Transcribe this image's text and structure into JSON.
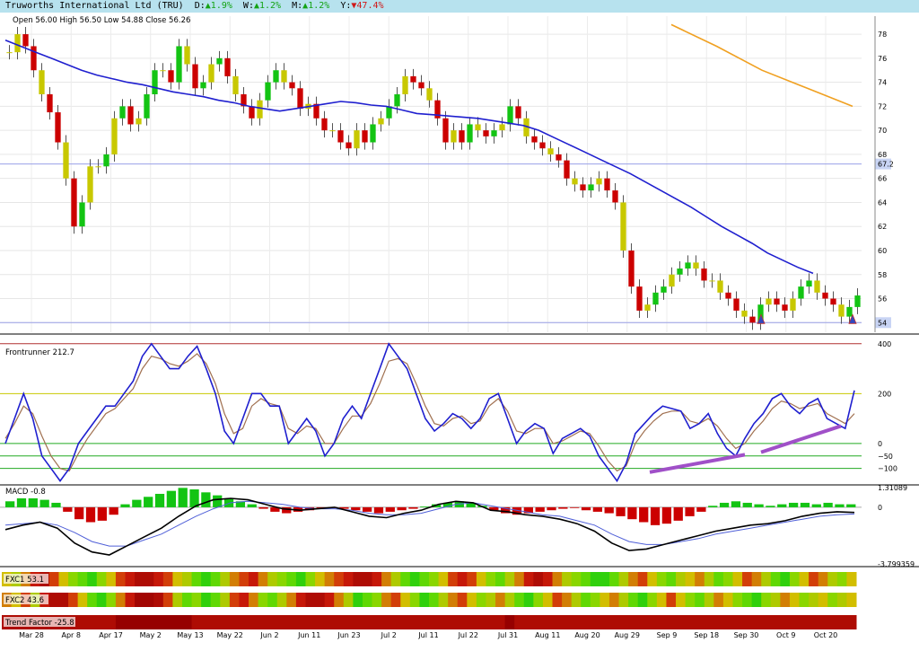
{
  "header": {
    "name": "Truworths International Ltd (TRU)",
    "d_label": "D:",
    "d_arrow": "▲",
    "d_val": "1.9%",
    "w_label": "W:",
    "w_arrow": "▲",
    "w_val": "1.2%",
    "m_label": "M:",
    "m_arrow": "▲",
    "m_val": "1.2%",
    "y_label": "Y:",
    "y_arrow": "▼",
    "y_val": "47.4%"
  },
  "colors": {
    "up": "#13c413",
    "down": "#cc0000",
    "neutral": "#c8c800",
    "ma": "#1f1fcf",
    "ma_long": "#f0a020",
    "divergence": "#a050c8"
  },
  "chart_data": [
    {
      "type": "candlestick",
      "ohlc_label": "Open 56.00  High 56.50  Low 54.88  Close 56.26",
      "y_ticks": [
        78,
        76,
        74,
        72,
        70,
        68,
        66,
        64,
        62,
        60,
        58,
        56,
        54
      ],
      "ylim": [
        53.2,
        79.5
      ],
      "marker_labels": [
        "67",
        "54"
      ],
      "markers": [
        67.2,
        54.0
      ],
      "closes": [
        76.5,
        78,
        77,
        75,
        73,
        71.5,
        69,
        66,
        62,
        64,
        67,
        67,
        68,
        71,
        72,
        70.5,
        71,
        73,
        75,
        75,
        74,
        77,
        75.5,
        73.5,
        74,
        75.5,
        76,
        74.5,
        73,
        72,
        71,
        72.5,
        74,
        75,
        74,
        73.5,
        71.8,
        72.2,
        71,
        70,
        70,
        69,
        68.5,
        70,
        69,
        70.5,
        71,
        72,
        73,
        74.5,
        74,
        73.5,
        72.5,
        71,
        69,
        70,
        69,
        70.5,
        70,
        69.5,
        70,
        70.5,
        72,
        71,
        69.5,
        69,
        68.5,
        68,
        67.5,
        66,
        65.5,
        65,
        65.5,
        66,
        65,
        64,
        60,
        57,
        55,
        55.5,
        56.5,
        57,
        58,
        58.5,
        59,
        58.5,
        57.5,
        57.5,
        56.5,
        56,
        55,
        54.5,
        54,
        55.5,
        56,
        55.5,
        55,
        56,
        57,
        57.5,
        56.5,
        56,
        55.5,
        54.5,
        55.3,
        56.26
      ],
      "ma": [
        77.5,
        77,
        76.5,
        76,
        75.5,
        75,
        74.6,
        74.3,
        74,
        73.8,
        73.5,
        73.2,
        73,
        72.8,
        72.5,
        72.3,
        72,
        71.8,
        71.6,
        71.8,
        72,
        72.2,
        72.4,
        72.3,
        72.1,
        72,
        71.7,
        71.4,
        71.3,
        71.2,
        71.1,
        71,
        70.8,
        70.6,
        70.4,
        70,
        69.4,
        68.8,
        68.2,
        67.6,
        67,
        66.4,
        65.7,
        65,
        64.3,
        63.6,
        62.8,
        62,
        61.3,
        60.6,
        59.8,
        59.2,
        58.6,
        58.1
      ],
      "ma_long": [
        78.8,
        77,
        75,
        73.5,
        72
      ],
      "series": [
        {
          "name": "",
          "values": []
        }
      ]
    },
    {
      "type": "line",
      "title_text": "Frontrunner 212.7",
      "y_ticks": [
        "400",
        "200",
        "0",
        "−50",
        "−100"
      ],
      "ylim": [
        -130,
        410
      ],
      "fast": [
        0,
        100,
        200,
        100,
        -50,
        -100,
        -150,
        -100,
        0,
        50,
        100,
        150,
        150,
        200,
        250,
        350,
        400,
        350,
        300,
        300,
        350,
        390,
        300,
        200,
        50,
        0,
        100,
        200,
        200,
        150,
        150,
        0,
        50,
        100,
        50,
        -50,
        0,
        100,
        150,
        100,
        200,
        300,
        400,
        350,
        300,
        200,
        100,
        50,
        80,
        120,
        100,
        60,
        100,
        180,
        200,
        100,
        0,
        50,
        80,
        60,
        -40,
        20,
        40,
        60,
        30,
        -50,
        -100,
        -150,
        -80,
        40,
        80,
        120,
        150,
        140,
        130,
        60,
        80,
        120,
        40,
        -20,
        -50,
        20,
        80,
        120,
        180,
        200,
        150,
        120,
        160,
        180,
        100,
        80,
        60,
        212.7
      ],
      "slow": [
        20,
        80,
        150,
        120,
        30,
        -50,
        -100,
        -110,
        -40,
        20,
        70,
        120,
        140,
        180,
        220,
        300,
        350,
        340,
        320,
        310,
        330,
        360,
        320,
        240,
        120,
        40,
        60,
        150,
        180,
        160,
        150,
        60,
        40,
        70,
        60,
        0,
        0,
        60,
        110,
        110,
        160,
        240,
        330,
        340,
        320,
        240,
        150,
        80,
        70,
        100,
        110,
        80,
        90,
        150,
        180,
        130,
        50,
        40,
        60,
        60,
        0,
        10,
        30,
        50,
        40,
        -10,
        -70,
        -110,
        -90,
        0,
        50,
        90,
        120,
        130,
        130,
        90,
        80,
        100,
        70,
        20,
        -20,
        0,
        50,
        90,
        140,
        170,
        160,
        140,
        150,
        160,
        120,
        100,
        80,
        120
      ]
    },
    {
      "type": "bar",
      "title_text": "MACD -0.8",
      "y_ticks": [
        "1.31089",
        "0",
        "-3.799359"
      ],
      "ylim": [
        -3.8,
        1.32
      ],
      "histogram": [
        0.4,
        0.6,
        0.6,
        0.5,
        0.3,
        -0.3,
        -0.8,
        -1.0,
        -0.9,
        -0.5,
        0.2,
        0.5,
        0.7,
        0.9,
        1.1,
        1.3,
        1.2,
        1.0,
        0.8,
        0.6,
        0.4,
        0.2,
        -0.1,
        -0.3,
        -0.4,
        -0.3,
        -0.2,
        -0.1,
        -0.05,
        -0.1,
        -0.2,
        -0.3,
        -0.4,
        -0.3,
        -0.2,
        -0.1,
        0.05,
        0.2,
        0.3,
        0.4,
        0.3,
        0.1,
        -0.2,
        -0.4,
        -0.5,
        -0.4,
        -0.3,
        -0.2,
        -0.1,
        -0.05,
        -0.2,
        -0.3,
        -0.4,
        -0.6,
        -0.8,
        -1.0,
        -1.2,
        -1.1,
        -0.9,
        -0.6,
        -0.3,
        0.1,
        0.3,
        0.4,
        0.3,
        0.2,
        0.1,
        0.2,
        0.3,
        0.3,
        0.2,
        0.3,
        0.2,
        0.2
      ],
      "macd": [
        -1.5,
        -1.2,
        -1.0,
        -1.4,
        -2.4,
        -3.0,
        -3.2,
        -2.6,
        -2.0,
        -1.4,
        -0.6,
        0.1,
        0.5,
        0.6,
        0.5,
        0.2,
        -0.1,
        -0.2,
        -0.1,
        0,
        -0.3,
        -0.6,
        -0.7,
        -0.4,
        -0.2,
        0.2,
        0.4,
        0.3,
        -0.2,
        -0.3,
        -0.5,
        -0.6,
        -0.8,
        -1.1,
        -1.6,
        -2.4,
        -2.9,
        -2.8,
        -2.5,
        -2.2,
        -1.9,
        -1.6,
        -1.4,
        -1.2,
        -1.1,
        -0.9,
        -0.6,
        -0.4,
        -0.3,
        -0.35
      ],
      "signal": [
        -1.2,
        -1.1,
        -1.0,
        -1.2,
        -1.7,
        -2.3,
        -2.6,
        -2.6,
        -2.2,
        -1.8,
        -1.2,
        -0.6,
        -0.1,
        0.3,
        0.4,
        0.3,
        0.2,
        0,
        -0.1,
        -0.1,
        -0.2,
        -0.4,
        -0.5,
        -0.5,
        -0.4,
        -0.1,
        0.2,
        0.3,
        0.1,
        -0.1,
        -0.3,
        -0.5,
        -0.6,
        -0.9,
        -1.2,
        -1.8,
        -2.3,
        -2.5,
        -2.5,
        -2.3,
        -2.1,
        -1.8,
        -1.6,
        -1.4,
        -1.2,
        -1.0,
        -0.8,
        -0.6,
        -0.5,
        -0.45
      ]
    },
    {
      "type": "heatmap",
      "strips": [
        {
          "label": "FXC1 53.1",
          "values": [
            0.5,
            0.6,
            0.4,
            0.2,
            0.1,
            0.3,
            0.5,
            0.7,
            0.8,
            0.9,
            0.7,
            0.5,
            0.3,
            0.2,
            0.1,
            0.1,
            0.2,
            0.3,
            0.5,
            0.6,
            0.8,
            0.9,
            0.8,
            0.6,
            0.4,
            0.3,
            0.2,
            0.4,
            0.6,
            0.7,
            0.8,
            0.9,
            0.7,
            0.5,
            0.4,
            0.3,
            0.2,
            0.1,
            0.1,
            0.2,
            0.4,
            0.6,
            0.8,
            0.9,
            0.8,
            0.7,
            0.5,
            0.3,
            0.2,
            0.3,
            0.5,
            0.7,
            0.8,
            0.6,
            0.4,
            0.2,
            0.1,
            0.2,
            0.4,
            0.6,
            0.7,
            0.8,
            0.9,
            0.9,
            0.8,
            0.6,
            0.4,
            0.3,
            0.5,
            0.7,
            0.8,
            0.6,
            0.5,
            0.4,
            0.6,
            0.8,
            0.7,
            0.5,
            0.3,
            0.4,
            0.6,
            0.8,
            0.9,
            0.7,
            0.5,
            0.3,
            0.4,
            0.6,
            0.7,
            0.5
          ]
        },
        {
          "label": "FXC2 43.6",
          "values": [
            0.4,
            0.5,
            0.3,
            0.6,
            0.2,
            0.1,
            0.1,
            0.3,
            0.5,
            0.8,
            0.9,
            0.7,
            0.4,
            0.2,
            0.05,
            0.05,
            0.1,
            0.3,
            0.6,
            0.8,
            0.7,
            0.9,
            0.8,
            0.6,
            0.3,
            0.2,
            0.4,
            0.7,
            0.8,
            0.6,
            0.4,
            0.2,
            0.1,
            0.1,
            0.2,
            0.4,
            0.6,
            0.9,
            0.8,
            0.7,
            0.4,
            0.3,
            0.5,
            0.7,
            0.9,
            0.8,
            0.6,
            0.4,
            0.3,
            0.5,
            0.7,
            0.6,
            0.4,
            0.6,
            0.8,
            0.9,
            0.7,
            0.5,
            0.3,
            0.4,
            0.6,
            0.8,
            0.7,
            0.5,
            0.4,
            0.6,
            0.8,
            0.9,
            0.7,
            0.5,
            0.3,
            0.5,
            0.7,
            0.8,
            0.6,
            0.4,
            0.5,
            0.7,
            0.8,
            0.9,
            0.7,
            0.6,
            0.4,
            0.5,
            0.7,
            0.6,
            0.5,
            0.7,
            0.6,
            0.5
          ]
        },
        {
          "label": "Trend Factor -25.8",
          "values": [
            0.1,
            0.1,
            0.1,
            0.1,
            0.1,
            0.1,
            0.1,
            0.1,
            0.1,
            0.1,
            0.1,
            0.1,
            0.0,
            0.0,
            0.0,
            0.0,
            0.0,
            0.0,
            0.0,
            0.0,
            0.1,
            0.1,
            0.1,
            0.1,
            0.1,
            0.1,
            0.1,
            0.1,
            0.1,
            0.1,
            0.1,
            0.1,
            0.1,
            0.1,
            0.1,
            0.1,
            0.1,
            0.1,
            0.1,
            0.1,
            0.1,
            0.1,
            0.1,
            0.1,
            0.1,
            0.1,
            0.1,
            0.1,
            0.1,
            0.1,
            0.1,
            0.1,
            0.1,
            0.0,
            0.1,
            0.1,
            0.1,
            0.1,
            0.1,
            0.1,
            0.1,
            0.1,
            0.1,
            0.1,
            0.1,
            0.1,
            0.1,
            0.1,
            0.1,
            0.1,
            0.1,
            0.1,
            0.1,
            0.1,
            0.1,
            0.1,
            0.1,
            0.1,
            0.1,
            0.1,
            0.1,
            0.1,
            0.1,
            0.1,
            0.1,
            0.1,
            0.1,
            0.1,
            0.1,
            0.1
          ]
        }
      ]
    }
  ],
  "x_axis": {
    "ticks": [
      "Mar 28",
      "Apr 8",
      "Apr 17",
      "May 2",
      "May 13",
      "May 22",
      "Jun 2",
      "Jun 11",
      "Jun 23",
      "Jul 2",
      "Jul 11",
      "Jul 22",
      "Jul 31",
      "Aug 11",
      "Aug 20",
      "Aug 29",
      "Sep 9",
      "Sep 18",
      "Sep 30",
      "Oct 9",
      "Oct 20"
    ]
  }
}
